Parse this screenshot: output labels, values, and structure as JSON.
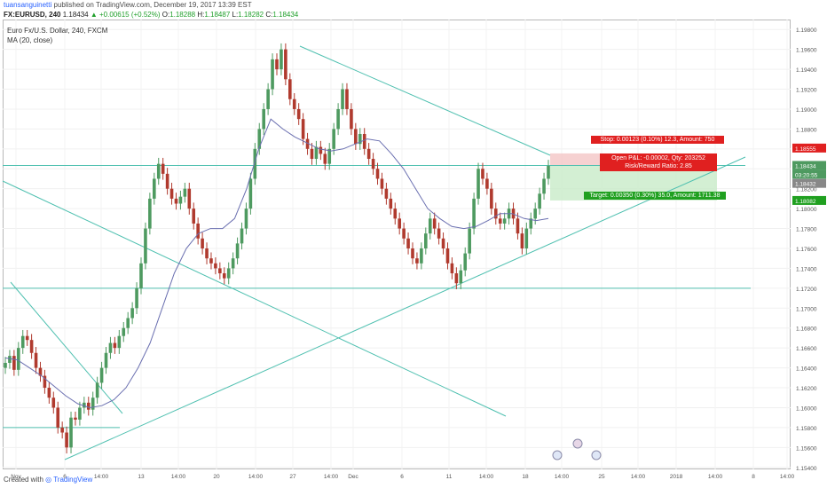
{
  "header": {
    "author": "tuansanguinetti",
    "publish_text": " published on TradingView.com, December 19, 2017 13:39 EST"
  },
  "ohlc": {
    "symbol": "FX:EURUSD, 240",
    "last": "1.18434",
    "change": "▲ +0.00615 (+0.52%)",
    "o_label": "O:",
    "o": "1.18288",
    "h_label": "H:",
    "h": "1.18487",
    "l_label": "L:",
    "l": "1.18282",
    "c_label": "C:",
    "c": "1.18434"
  },
  "legend": {
    "symbol_desc": "Euro Fx/U.S. Dollar, 240, FXCM",
    "ma": "MA (20, close)"
  },
  "position": {
    "stop": "Stop: 0.00123 (0.10%) 12.3, Amount: 750",
    "open_pl": "Open P&L: -0.00002, Qty: 203252",
    "rr": "Risk/Reward Ratio: 2.85",
    "target": "Target: 0.00350 (0.30%) 35.0, Amount: 1711.38"
  },
  "price_tags": {
    "stop": "1.18555",
    "last": "1.18434",
    "countdown": "03:20:55",
    "entry": "1.18432",
    "target": "1.18082"
  },
  "footer": {
    "created_with": "Created with",
    "brand": "TradingView"
  },
  "colors": {
    "up": "#4e9a60",
    "down": "#b03a2e",
    "ma": "#6a6fb0",
    "trend": "#4fc0b0",
    "stop_zone": "#f4c6c6",
    "target_zone": "#c8ebc8",
    "stop_tag": "#e02020",
    "target_tag": "#20a020"
  },
  "chart_data": {
    "type": "candlestick",
    "symbol": "FX:EURUSD",
    "timeframe": "240",
    "ylim": [
      1.1538,
      1.199
    ],
    "y_ticks": [
      "1.19800",
      "1.19600",
      "1.19400",
      "1.19200",
      "1.19000",
      "1.18800",
      "1.18600",
      "1.18400",
      "1.18200",
      "1.18000",
      "1.17800",
      "1.17600",
      "1.17400",
      "1.17200",
      "1.17000",
      "1.16800",
      "1.16600",
      "1.16400",
      "1.16200",
      "1.16000",
      "1.15800",
      "1.15600",
      "1.15400"
    ],
    "x_ticks": [
      "Nov",
      "6",
      "14:00",
      "13",
      "14:00",
      "20",
      "14:00",
      "27",
      "14:00",
      "Dec",
      "6",
      "11",
      "14:00",
      "18",
      "14:00",
      "25",
      "14:00",
      "2018",
      "14:00",
      "8",
      "14:00"
    ],
    "closes": [
      1.1645,
      1.1652,
      1.1638,
      1.166,
      1.1672,
      1.1668,
      1.1655,
      1.164,
      1.1632,
      1.162,
      1.161,
      1.16,
      1.158,
      1.1575,
      1.156,
      1.159,
      1.1588,
      1.16,
      1.1605,
      1.1598,
      1.161,
      1.1625,
      1.164,
      1.1655,
      1.1665,
      1.166,
      1.1672,
      1.168,
      1.169,
      1.17,
      1.172,
      1.1745,
      1.178,
      1.181,
      1.183,
      1.1845,
      1.1835,
      1.182,
      1.181,
      1.1805,
      1.1812,
      1.182,
      1.18,
      1.1785,
      1.177,
      1.176,
      1.175,
      1.1745,
      1.174,
      1.1735,
      1.173,
      1.174,
      1.175,
      1.1765,
      1.178,
      1.18,
      1.183,
      1.186,
      1.188,
      1.19,
      1.192,
      1.195,
      1.194,
      1.196,
      1.193,
      1.191,
      1.19,
      1.189,
      1.187,
      1.186,
      1.185,
      1.1862,
      1.1855,
      1.1845,
      1.186,
      1.188,
      1.19,
      1.192,
      1.19,
      1.188,
      1.1865,
      1.1875,
      1.186,
      1.185,
      1.184,
      1.183,
      1.182,
      1.181,
      1.18,
      1.179,
      1.178,
      1.177,
      1.176,
      1.175,
      1.1745,
      1.176,
      1.1775,
      1.179,
      1.178,
      1.177,
      1.176,
      1.1745,
      1.1735,
      1.1725,
      1.1738,
      1.1755,
      1.178,
      1.181,
      1.184,
      1.183,
      1.182,
      1.18,
      1.179,
      1.1785,
      1.179,
      1.18,
      1.179,
      1.1775,
      1.176,
      1.178,
      1.179,
      1.18,
      1.1815,
      1.183,
      1.1843
    ],
    "ma_20": [
      1.165,
      1.1648,
      1.164,
      1.1632,
      1.1622,
      1.1612,
      1.1604,
      1.16,
      1.1602,
      1.1608,
      1.162,
      1.164,
      1.1665,
      1.17,
      1.1735,
      1.176,
      1.1775,
      1.178,
      1.178,
      1.179,
      1.182,
      1.186,
      1.189,
      1.188,
      1.1872,
      1.1866,
      1.186,
      1.1858,
      1.186,
      1.1865,
      1.187,
      1.1868,
      1.1855,
      1.184,
      1.182,
      1.18,
      1.179,
      1.1782,
      1.178,
      1.1782,
      1.1788,
      1.1795,
      1.1795,
      1.179,
      1.1788,
      1.179
    ],
    "horizontal_levels": [
      1.18434,
      1.172,
      1.158
    ],
    "position": {
      "entry": 1.18432,
      "stop": 1.18555,
      "target": 1.18082
    }
  }
}
